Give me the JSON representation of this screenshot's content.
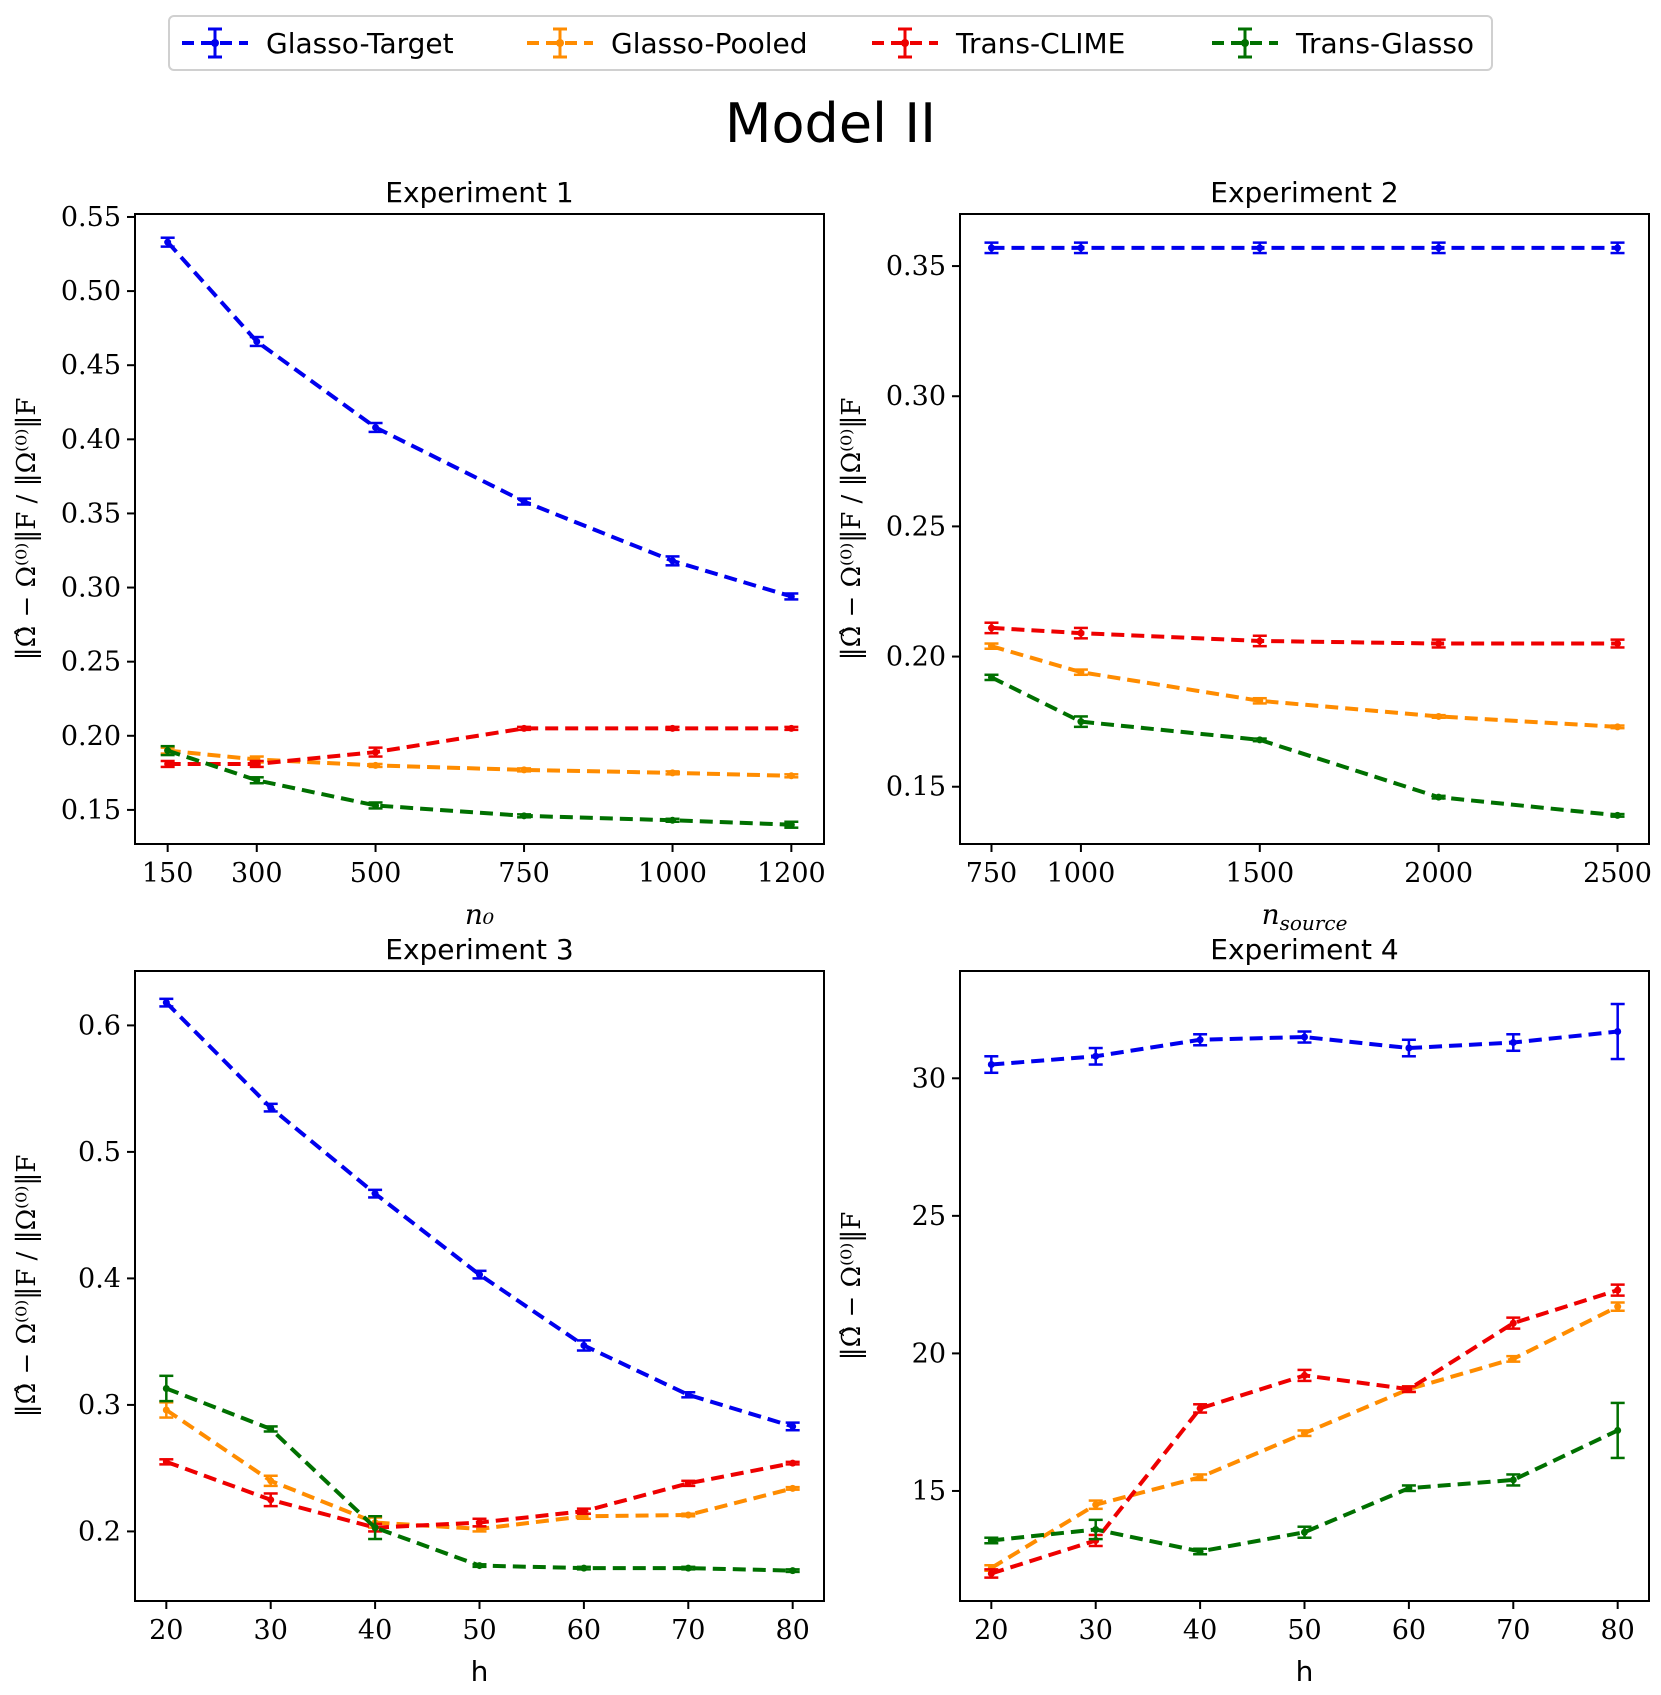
{
  "legend": [
    {
      "name": "Glasso-Target",
      "color": "#0000ee"
    },
    {
      "name": "Glasso-Pooled",
      "color": "#ff8c00"
    },
    {
      "name": "Trans-CLIME",
      "color": "#ee0000"
    },
    {
      "name": "Trans-Glasso",
      "color": "#007000"
    }
  ],
  "suptitle": "Model II",
  "chart_data": [
    {
      "type": "line",
      "title": "Experiment 1",
      "xlabel": "n₀",
      "ylabel": "‖Ω̂ − Ω⁽⁰⁾‖F / ‖Ω⁽⁰⁾‖F",
      "x": [
        150,
        300,
        500,
        750,
        1000,
        1200
      ],
      "xticks": [
        150,
        300,
        500,
        750,
        1000,
        1200
      ],
      "xticklabels": [
        "150",
        "300",
        "500",
        "750",
        "1000",
        "1200"
      ],
      "xlim": [
        95,
        1255
      ],
      "yticks": [
        0.15,
        0.2,
        0.25,
        0.3,
        0.35,
        0.4,
        0.45,
        0.5,
        0.55
      ],
      "yticklabels": [
        "0.15",
        "0.20",
        "0.25",
        "0.30",
        "0.35",
        "0.40",
        "0.45",
        "0.50",
        "0.55"
      ],
      "ylim": [
        0.127,
        0.552
      ],
      "series": [
        {
          "name": "Glasso-Target",
          "values": [
            0.533,
            0.466,
            0.408,
            0.358,
            0.318,
            0.294
          ],
          "err": [
            0.003,
            0.003,
            0.003,
            0.002,
            0.003,
            0.002
          ]
        },
        {
          "name": "Glasso-Pooled",
          "values": [
            0.19,
            0.184,
            0.18,
            0.177,
            0.175,
            0.173
          ],
          "err": [
            0.002,
            0.002,
            0.001,
            0.001,
            0.001,
            0.001
          ]
        },
        {
          "name": "Trans-CLIME",
          "values": [
            0.181,
            0.181,
            0.189,
            0.205,
            0.205,
            0.205
          ],
          "err": [
            0.002,
            0.002,
            0.003,
            0.001,
            0.001,
            0.001
          ]
        },
        {
          "name": "Trans-Glasso",
          "values": [
            0.19,
            0.17,
            0.153,
            0.146,
            0.143,
            0.14
          ],
          "err": [
            0.003,
            0.002,
            0.002,
            0.001,
            0.001,
            0.002
          ]
        }
      ]
    },
    {
      "type": "line",
      "title": "Experiment 2",
      "xlabel": "n_source",
      "ylabel": "‖Ω̂ − Ω⁽⁰⁾‖F / ‖Ω⁽⁰⁾‖F",
      "x": [
        750,
        1000,
        1500,
        2000,
        2500
      ],
      "xticks": [
        750,
        1000,
        1500,
        2000,
        2500
      ],
      "xticklabels": [
        "750",
        "1000",
        "1500",
        "2000",
        "2500"
      ],
      "xlim": [
        662,
        2588
      ],
      "yticks": [
        0.15,
        0.2,
        0.25,
        0.3,
        0.35
      ],
      "yticklabels": [
        "0.15",
        "0.20",
        "0.25",
        "0.30",
        "0.35"
      ],
      "ylim": [
        0.128,
        0.37
      ],
      "series": [
        {
          "name": "Glasso-Target",
          "values": [
            0.357,
            0.357,
            0.357,
            0.357,
            0.357
          ],
          "err": [
            0.002,
            0.002,
            0.002,
            0.002,
            0.002
          ]
        },
        {
          "name": "Glasso-Pooled",
          "values": [
            0.204,
            0.194,
            0.183,
            0.177,
            0.173
          ],
          "err": [
            0.001,
            0.001,
            0.001,
            0.0005,
            0.0005
          ]
        },
        {
          "name": "Trans-CLIME",
          "values": [
            0.211,
            0.209,
            0.206,
            0.205,
            0.205
          ],
          "err": [
            0.002,
            0.002,
            0.002,
            0.0015,
            0.0015
          ]
        },
        {
          "name": "Trans-Glasso",
          "values": [
            0.192,
            0.175,
            0.168,
            0.146,
            0.139
          ],
          "err": [
            0.001,
            0.002,
            0.0005,
            0.0005,
            0.0005
          ]
        }
      ]
    },
    {
      "type": "line",
      "title": "Experiment 3",
      "xlabel": "h",
      "ylabel": "‖Ω̂ − Ω⁽⁰⁾‖F / ‖Ω⁽⁰⁾‖F",
      "x": [
        20,
        30,
        40,
        50,
        60,
        70,
        80
      ],
      "xticks": [
        20,
        30,
        40,
        50,
        60,
        70,
        80
      ],
      "xticklabels": [
        "20",
        "30",
        "40",
        "50",
        "60",
        "70",
        "80"
      ],
      "xlim": [
        17,
        83
      ],
      "yticks": [
        0.2,
        0.3,
        0.4,
        0.5,
        0.6
      ],
      "yticklabels": [
        "0.2",
        "0.3",
        "0.4",
        "0.5",
        "0.6"
      ],
      "ylim": [
        0.145,
        0.643
      ],
      "series": [
        {
          "name": "Glasso-Target",
          "values": [
            0.618,
            0.535,
            0.467,
            0.403,
            0.347,
            0.308,
            0.283
          ],
          "err": [
            0.003,
            0.003,
            0.003,
            0.003,
            0.004,
            0.002,
            0.003
          ]
        },
        {
          "name": "Glasso-Pooled",
          "values": [
            0.296,
            0.24,
            0.207,
            0.202,
            0.212,
            0.213,
            0.234
          ],
          "err": [
            0.006,
            0.004,
            0.004,
            0.002,
            0.002,
            0.001,
            0.001
          ]
        },
        {
          "name": "Trans-CLIME",
          "values": [
            0.255,
            0.225,
            0.203,
            0.207,
            0.216,
            0.238,
            0.254
          ],
          "err": [
            0.002,
            0.005,
            0.003,
            0.003,
            0.002,
            0.002,
            0.001
          ]
        },
        {
          "name": "Trans-Glasso",
          "values": [
            0.313,
            0.281,
            0.203,
            0.173,
            0.171,
            0.171,
            0.169
          ],
          "err": [
            0.01,
            0.002,
            0.009,
            0.001,
            0.001,
            0.001,
            0.001
          ]
        }
      ]
    },
    {
      "type": "line",
      "title": "Experiment 4",
      "xlabel": "h",
      "ylabel": "‖Ω̂ − Ω⁽⁰⁾‖F",
      "x": [
        20,
        30,
        40,
        50,
        60,
        70,
        80
      ],
      "xticks": [
        20,
        30,
        40,
        50,
        60,
        70,
        80
      ],
      "xticklabels": [
        "20",
        "30",
        "40",
        "50",
        "60",
        "70",
        "80"
      ],
      "xlim": [
        17,
        83
      ],
      "yticks": [
        15,
        20,
        25,
        30
      ],
      "yticklabels": [
        "15",
        "20",
        "25",
        "30"
      ],
      "ylim": [
        11.0,
        33.9
      ],
      "series": [
        {
          "name": "Glasso-Target",
          "values": [
            30.5,
            30.8,
            31.4,
            31.5,
            31.1,
            31.3,
            31.7
          ],
          "err": [
            0.3,
            0.3,
            0.2,
            0.2,
            0.3,
            0.3,
            1.0
          ]
        },
        {
          "name": "Glasso-Pooled",
          "values": [
            12.2,
            14.5,
            15.5,
            17.1,
            18.7,
            19.8,
            21.7
          ],
          "err": [
            0.1,
            0.15,
            0.1,
            0.1,
            0.1,
            0.1,
            0.15
          ]
        },
        {
          "name": "Trans-CLIME",
          "values": [
            12.0,
            13.2,
            18.0,
            19.2,
            18.7,
            21.1,
            22.3
          ],
          "err": [
            0.15,
            0.2,
            0.15,
            0.2,
            0.1,
            0.2,
            0.2
          ]
        },
        {
          "name": "Trans-Glasso",
          "values": [
            13.2,
            13.6,
            12.8,
            13.5,
            15.1,
            15.4,
            17.2
          ],
          "err": [
            0.1,
            0.35,
            0.1,
            0.2,
            0.1,
            0.2,
            1.0
          ]
        }
      ]
    }
  ]
}
